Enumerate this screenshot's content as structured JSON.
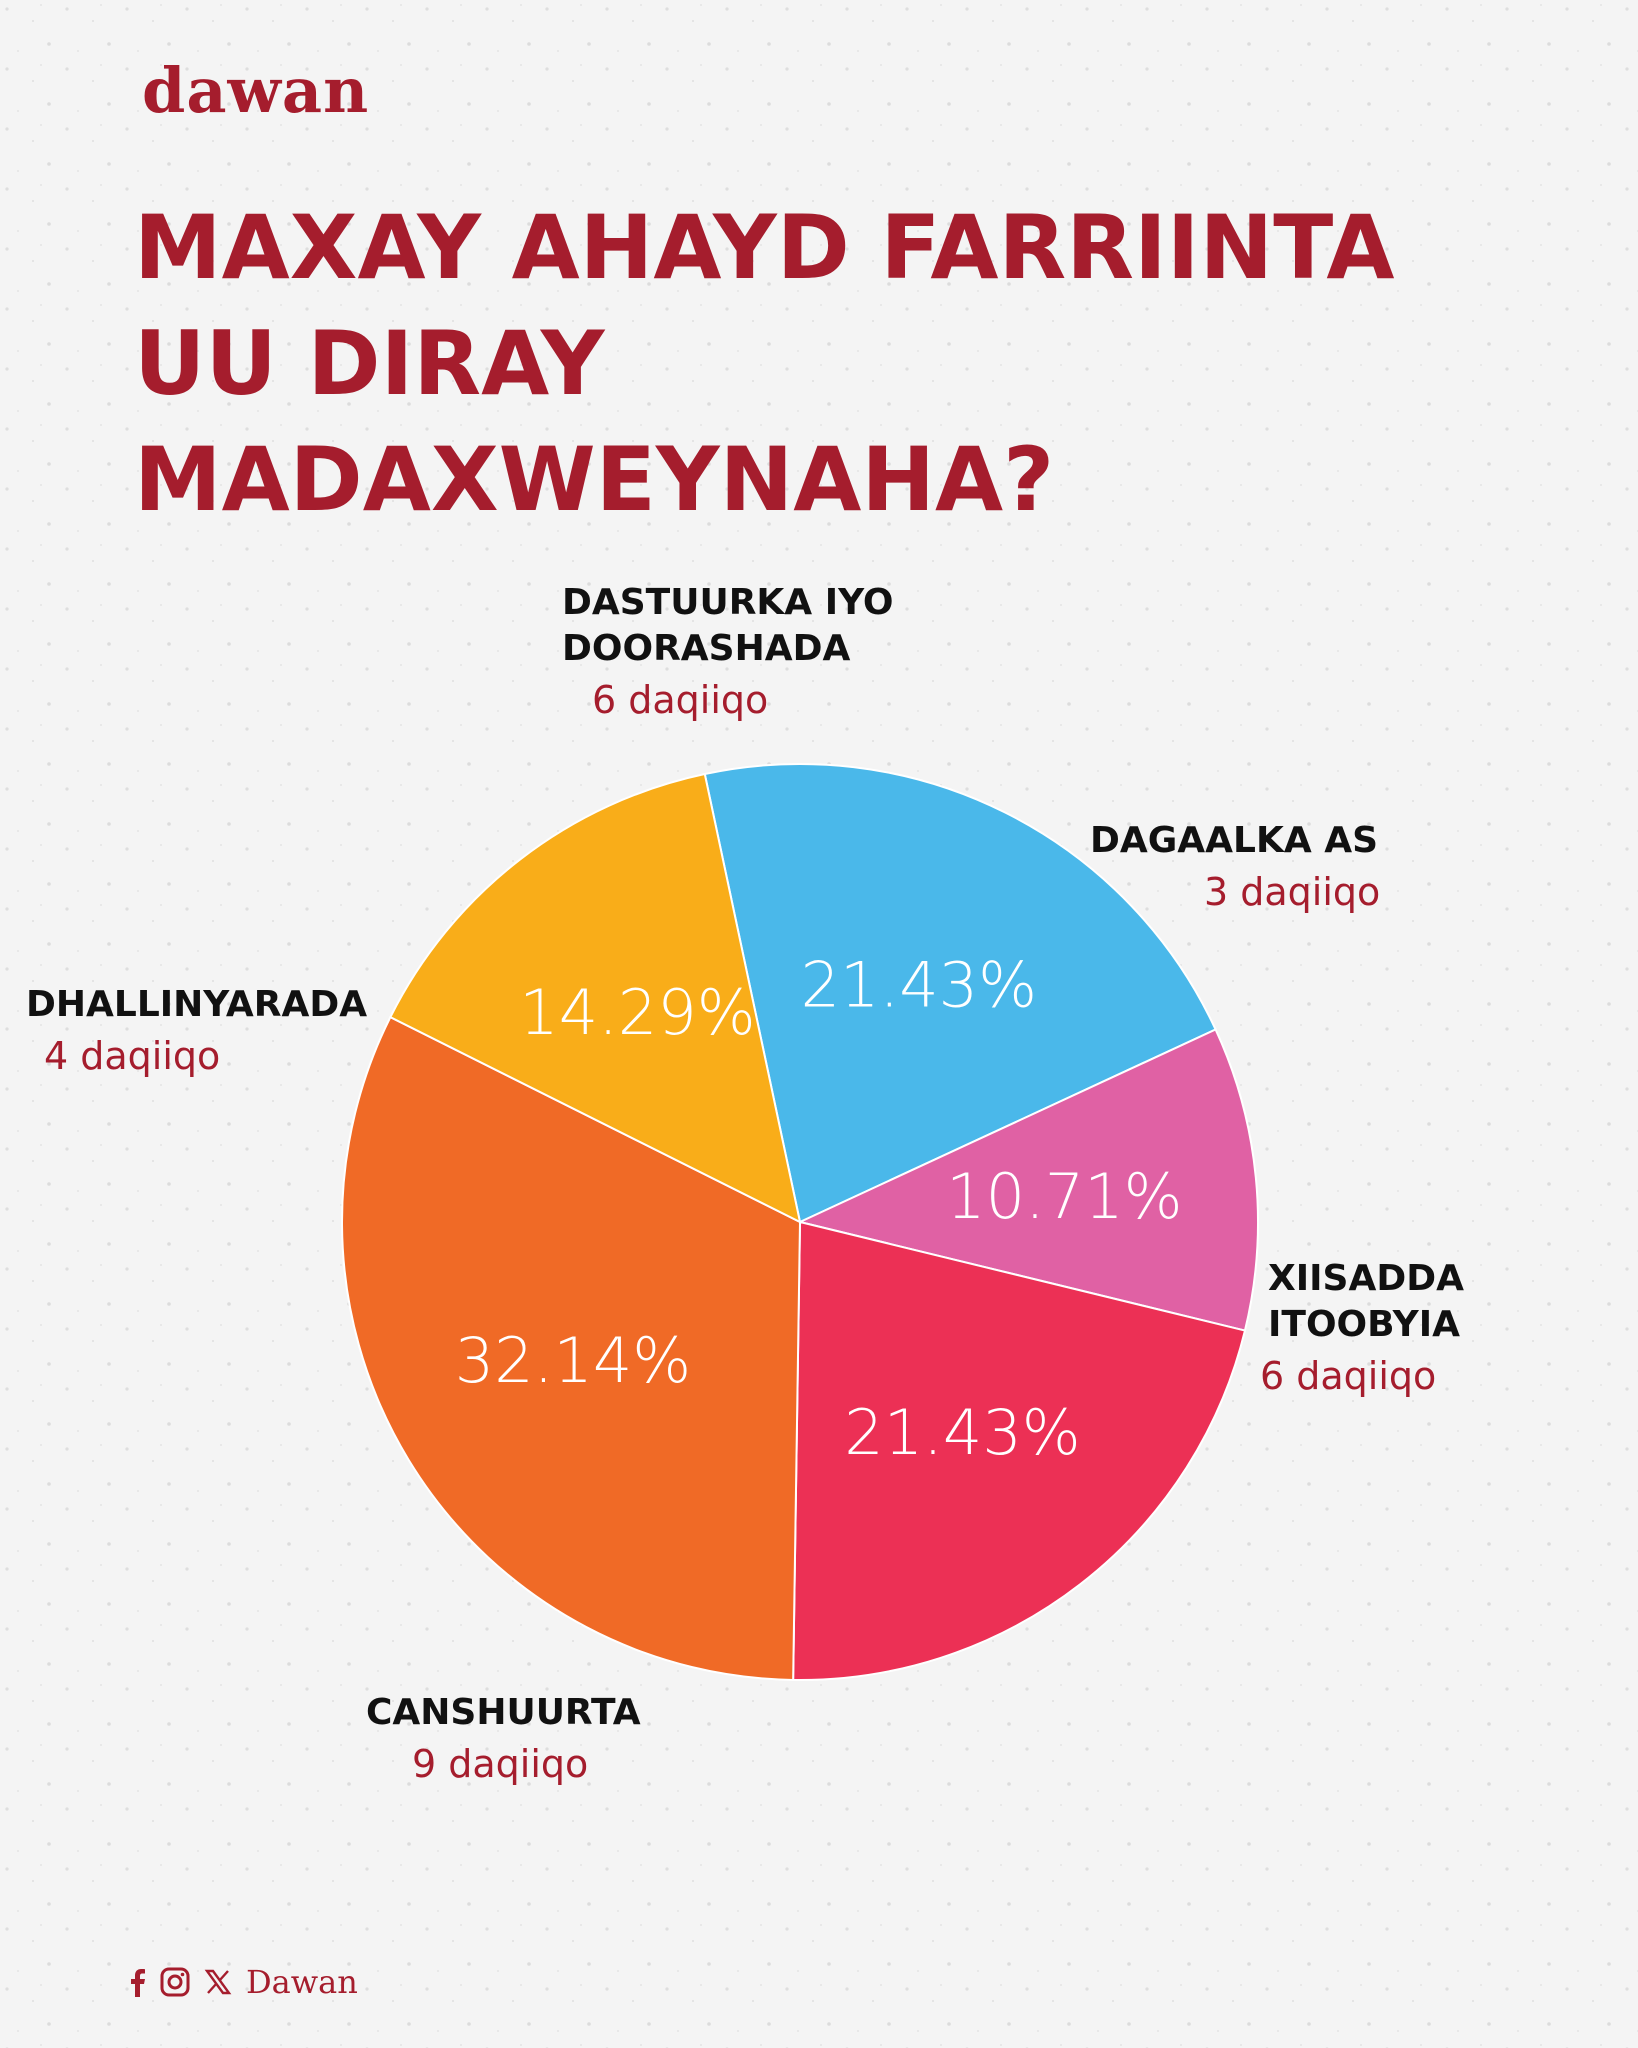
{
  "brand": {
    "logo": "dawan"
  },
  "title": "MAXAY AHAYD FARRIINTA UU DIRAY MADAXWEYNAHA?",
  "footer": {
    "handle": "Dawan",
    "icons": [
      "facebook-icon",
      "instagram-icon",
      "x-icon"
    ]
  },
  "colors": {
    "accent": "#a51d2d",
    "slices": [
      "#4ab8ea",
      "#e061a4",
      "#ec3055",
      "#f06a26",
      "#f9ad19"
    ]
  },
  "chart_data": {
    "type": "pie",
    "title": "MAXAY AHAYD FARRIINTA UU DIRAY MADAXWEYNAHA?",
    "categories": [
      "DASTUURKA IYO DOORASHADA",
      "DAGAALKA AS",
      "XIISADDA ITOOBYIA",
      "CANSHUURTA",
      "DHALLINYARADA"
    ],
    "values": [
      6,
      3,
      6,
      9,
      4
    ],
    "percent_labels": [
      "21.43%",
      "10.71%",
      "21.43%",
      "32.14%",
      "14.29%"
    ],
    "duration_labels": [
      "6 daqiiqo",
      "3 daqiiqo",
      "6 daqiiqo",
      "9 daqiiqo",
      "4 daqiiqo"
    ],
    "category_lines": [
      [
        "DASTUURKA IYO",
        "DOORASHADA"
      ],
      [
        "DAGAALKA AS"
      ],
      [
        "XIISADDA",
        "ITOOBYIA"
      ],
      [
        "CANSHUURTA"
      ],
      [
        "DHALLINYARADA"
      ]
    ]
  }
}
